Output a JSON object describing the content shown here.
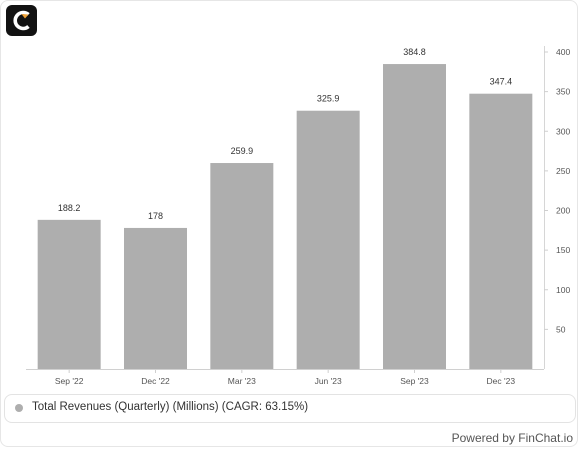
{
  "app": {
    "logo_icon": "finchat-logo-icon",
    "powered_by": "Powered by FinChat.io"
  },
  "legend": {
    "label": "Total Revenues (Quarterly) (Millions) (CAGR: 63.15%)"
  },
  "colors": {
    "bar": "#aeaeae",
    "text": "#333333",
    "axis_text": "#555555",
    "grid": "#e0e0e0",
    "logo_bg": "#121212",
    "logo_accent": "#f0a236"
  },
  "chart_data": {
    "type": "bar",
    "categories": [
      "Sep '22",
      "Dec '22",
      "Mar '23",
      "Jun '23",
      "Sep '23",
      "Dec '23"
    ],
    "values": [
      188.2,
      178,
      259.9,
      325.9,
      384.8,
      347.4
    ],
    "value_labels": [
      "188.2",
      "178",
      "259.9",
      "325.9",
      "384.8",
      "347.4"
    ],
    "ylim": [
      0,
      400
    ],
    "yticks": [
      50,
      100,
      150,
      200,
      250,
      300,
      350,
      400
    ],
    "y_axis_position": "right",
    "grid": false,
    "legend_position": "bottom"
  }
}
